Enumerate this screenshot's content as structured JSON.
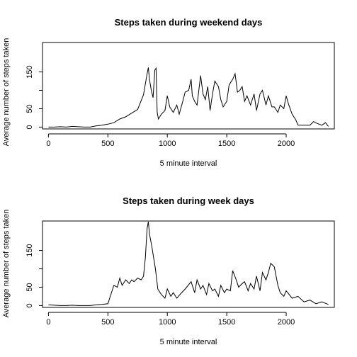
{
  "chart_data": [
    {
      "type": "line",
      "title": "Steps taken during weekend days",
      "xlabel": "5 minute interval",
      "ylabel": "Average number of steps taken",
      "xlim": [
        -50,
        2405
      ],
      "ylim": [
        -5,
        230
      ],
      "xticks": [
        "0",
        "500",
        "1000",
        "1500",
        "2000"
      ],
      "yticks": [
        "0",
        "50",
        "150"
      ],
      "ytick_values": [
        0,
        50,
        100,
        150
      ],
      "grid": false,
      "series": [
        {
          "x": [
            0,
            50,
            100,
            150,
            200,
            250,
            300,
            350,
            400,
            450,
            500,
            550,
            600,
            650,
            700,
            750,
            800,
            830,
            840,
            850,
            865,
            880,
            895,
            905,
            915,
            925,
            950,
            980,
            1000,
            1020,
            1050,
            1080,
            1100,
            1130,
            1150,
            1180,
            1200,
            1210,
            1230,
            1250,
            1280,
            1300,
            1320,
            1340,
            1360,
            1380,
            1400,
            1430,
            1450,
            1470,
            1500,
            1520,
            1550,
            1570,
            1590,
            1610,
            1630,
            1650,
            1670,
            1700,
            1730,
            1750,
            1780,
            1800,
            1830,
            1850,
            1880,
            1900,
            1930,
            1950,
            1980,
            2000,
            2020,
            2050,
            2080,
            2100,
            2130,
            2160,
            2200,
            2230,
            2260,
            2300,
            2330,
            2355
          ],
          "y": [
            0,
            0,
            1,
            0,
            2,
            1,
            0,
            0,
            3,
            5,
            8,
            12,
            22,
            28,
            38,
            48,
            88,
            145,
            162,
            130,
            100,
            80,
            155,
            160,
            40,
            22,
            35,
            45,
            85,
            55,
            40,
            60,
            35,
            70,
            95,
            100,
            130,
            85,
            70,
            60,
            140,
            90,
            75,
            110,
            45,
            90,
            125,
            110,
            75,
            55,
            70,
            115,
            130,
            145,
            95,
            100,
            110,
            70,
            85,
            60,
            90,
            45,
            90,
            100,
            60,
            85,
            55,
            55,
            40,
            60,
            50,
            85,
            62,
            35,
            20,
            5,
            5,
            5,
            5,
            15,
            10,
            5,
            12,
            2
          ]
        }
      ]
    },
    {
      "type": "line",
      "title": "Steps taken during week days",
      "xlabel": "5 minute interval",
      "ylabel": "Average number of steps taken",
      "xlim": [
        -50,
        2405
      ],
      "ylim": [
        -5,
        230
      ],
      "xticks": [
        "0",
        "500",
        "1000",
        "1500",
        "2000"
      ],
      "yticks": [
        "0",
        "50",
        "150"
      ],
      "ytick_values": [
        0,
        50,
        100,
        150
      ],
      "grid": false,
      "series": [
        {
          "x": [
            0,
            50,
            100,
            150,
            200,
            250,
            300,
            350,
            400,
            450,
            500,
            520,
            550,
            580,
            600,
            620,
            650,
            680,
            700,
            720,
            750,
            780,
            800,
            815,
            830,
            840,
            850,
            870,
            900,
            920,
            950,
            980,
            1000,
            1030,
            1050,
            1080,
            1100,
            1150,
            1200,
            1230,
            1250,
            1280,
            1300,
            1330,
            1350,
            1380,
            1400,
            1430,
            1450,
            1480,
            1500,
            1530,
            1550,
            1580,
            1600,
            1630,
            1650,
            1680,
            1700,
            1730,
            1750,
            1780,
            1800,
            1830,
            1850,
            1870,
            1900,
            1930,
            1950,
            1980,
            2000,
            2050,
            2100,
            2150,
            2200,
            2250,
            2300,
            2355
          ],
          "y": [
            2,
            1,
            0,
            0,
            1,
            0,
            0,
            0,
            2,
            3,
            5,
            25,
            55,
            50,
            75,
            55,
            70,
            60,
            70,
            65,
            75,
            70,
            80,
            130,
            210,
            228,
            195,
            160,
            100,
            45,
            30,
            20,
            45,
            25,
            35,
            20,
            28,
            45,
            65,
            35,
            70,
            45,
            55,
            30,
            60,
            40,
            45,
            25,
            55,
            35,
            45,
            40,
            95,
            70,
            50,
            60,
            65,
            40,
            60,
            45,
            80,
            40,
            90,
            70,
            90,
            115,
            105,
            55,
            35,
            25,
            40,
            20,
            25,
            10,
            15,
            5,
            10,
            3
          ]
        }
      ]
    }
  ]
}
